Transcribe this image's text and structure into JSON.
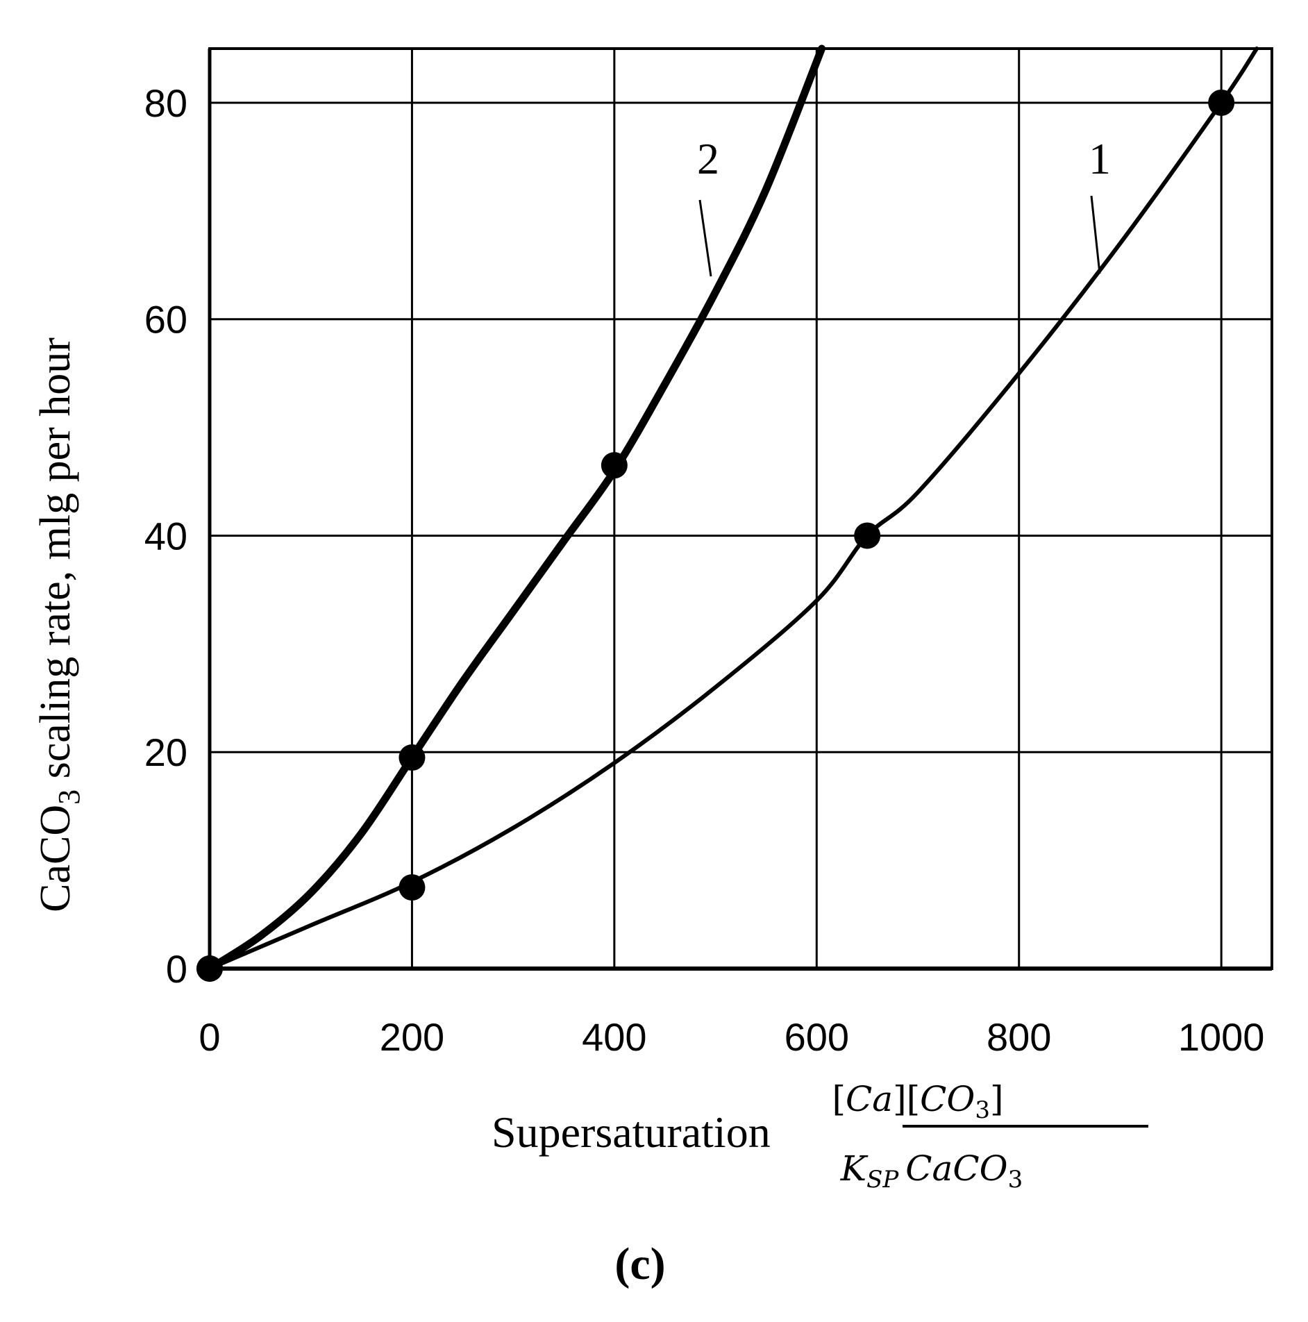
{
  "chart_data": {
    "type": "line",
    "title": "",
    "panel_label": "(c)",
    "ylabel": {
      "prefix": "CaCO",
      "subscript": "3",
      "suffix": " scaling rate, mlg per hour"
    },
    "xlabel": {
      "text": "Supersaturation",
      "numerator": {
        "open": "[",
        "ca": "Ca",
        "mid": "][",
        "co": "CO",
        "sub": "3",
        "close": "]"
      },
      "denominator": {
        "k": "K",
        "ksub": "SP",
        "caco": "CaCO",
        "sub": "3"
      }
    },
    "xlim": [
      0,
      1050
    ],
    "ylim": [
      0,
      85
    ],
    "xticks": [
      0,
      200,
      400,
      600,
      800,
      1000
    ],
    "yticks": [
      0,
      20,
      40,
      60,
      80
    ],
    "grid": true,
    "series": [
      {
        "name": "1",
        "label": "1",
        "x": [
          0,
          100,
          200,
          300,
          400,
          500,
          600,
          650,
          700,
          800,
          900,
          1000,
          1035
        ],
        "y": [
          0,
          4,
          8,
          13,
          19,
          26,
          34,
          40,
          44,
          55,
          67,
          80,
          85
        ],
        "markers": [
          [
            0,
            0
          ],
          [
            200,
            7.5
          ],
          [
            650,
            40
          ],
          [
            1000,
            80
          ]
        ]
      },
      {
        "name": "2",
        "label": "2",
        "x": [
          0,
          50,
          100,
          150,
          200,
          250,
          300,
          350,
          400,
          450,
          500,
          550,
          605
        ],
        "y": [
          0,
          3,
          7,
          12.5,
          19.5,
          26.5,
          33,
          39.5,
          46,
          54,
          62.5,
          72,
          85
        ],
        "markers": [
          [
            0,
            0
          ],
          [
            200,
            19.5
          ],
          [
            400,
            46.5
          ]
        ]
      }
    ]
  }
}
